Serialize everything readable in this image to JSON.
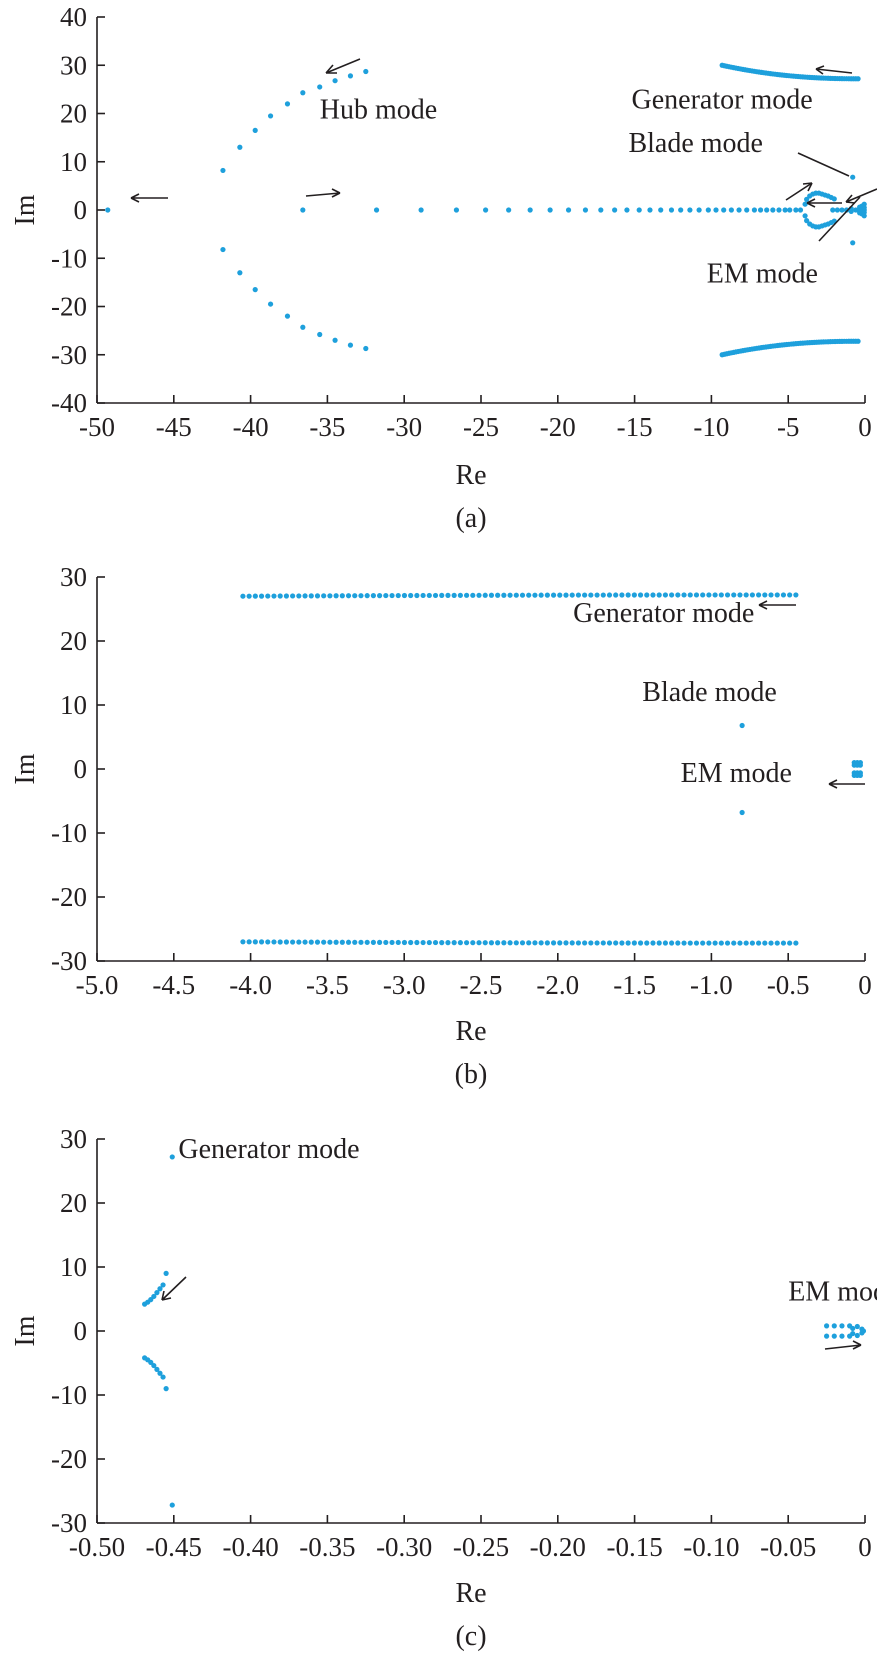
{
  "colors": {
    "marker": "#1ea0dc",
    "ink": "#231f20"
  },
  "chart_data": [
    {
      "type": "scatter",
      "caption": "(a)",
      "xlabel": "Re",
      "ylabel": "Im",
      "xlim": [
        -50,
        0
      ],
      "ylim": [
        -40,
        40
      ],
      "xticks": [
        -50,
        -45,
        -40,
        -35,
        -30,
        -25,
        -20,
        -15,
        -10,
        -5,
        0
      ],
      "xtick_labels": [
        "-50",
        "-45",
        "-40",
        "-35",
        "-30",
        "-25",
        "-20",
        "-15",
        "-10",
        "-5",
        "0"
      ],
      "yticks": [
        40,
        30,
        20,
        10,
        0,
        -10,
        -20,
        -30,
        -40
      ],
      "ytick_labels": [
        "40",
        "30",
        "20",
        "10",
        "0",
        "-10",
        "-20",
        "-30",
        "-40"
      ],
      "grid": false,
      "annotations": [
        {
          "text": "Hub mode",
          "x": -35.5,
          "y": 19
        },
        {
          "text": "Generator mode",
          "x": -15.2,
          "y": 21
        },
        {
          "text": "Blade mode",
          "x": -15.4,
          "y": 12
        },
        {
          "text": "EM mode",
          "x": -10.3,
          "y": -15
        }
      ],
      "series": [
        {
          "label": "hub",
          "points": [
            [
              -49.3,
              0
            ],
            [
              -41.8,
              8.2
            ],
            [
              -40.7,
              13
            ],
            [
              -39.7,
              16.5
            ],
            [
              -38.7,
              19.5
            ],
            [
              -37.6,
              22
            ],
            [
              -36.6,
              24.3
            ],
            [
              -35.5,
              25.5
            ],
            [
              -34.5,
              26.8
            ],
            [
              -33.5,
              27.8
            ],
            [
              -32.5,
              28.7
            ],
            [
              -41.8,
              -8.2
            ],
            [
              -40.7,
              -13
            ],
            [
              -39.7,
              -16.5
            ],
            [
              -38.7,
              -19.5
            ],
            [
              -37.6,
              -22
            ],
            [
              -36.6,
              -24.3
            ],
            [
              -35.5,
              -25.8
            ],
            [
              -34.5,
              -27
            ],
            [
              -33.5,
              -28
            ],
            [
              -32.5,
              -28.7
            ],
            [
              -36.6,
              0
            ],
            [
              -31.8,
              0
            ],
            [
              -28.9,
              0
            ],
            [
              -26.6,
              0
            ],
            [
              -24.7,
              0
            ],
            [
              -23.2,
              0
            ],
            [
              -21.8,
              0
            ],
            [
              -20.5,
              0
            ],
            [
              -19.3,
              0
            ],
            [
              -18.2,
              0
            ],
            [
              -17.2,
              0
            ],
            [
              -16.3,
              0
            ],
            [
              -15.5,
              0
            ],
            [
              -14.7,
              0
            ],
            [
              -14,
              0
            ],
            [
              -13.3,
              0
            ],
            [
              -12.6,
              0
            ],
            [
              -12,
              0
            ],
            [
              -11.4,
              0
            ],
            [
              -10.8,
              0
            ],
            [
              -10.2,
              0
            ],
            [
              -9.7,
              0
            ],
            [
              -9.2,
              0
            ],
            [
              -8.7,
              0
            ],
            [
              -8.2,
              0
            ],
            [
              -7.7,
              0
            ],
            [
              -7.2,
              0
            ],
            [
              -6.8,
              0
            ],
            [
              -6.4,
              0
            ],
            [
              -6,
              0
            ],
            [
              -5.6,
              0
            ],
            [
              -5.2,
              0
            ],
            [
              -4.9,
              0
            ],
            [
              -4.5,
              0
            ],
            [
              -4.2,
              0
            ]
          ]
        },
        {
          "label": "generator",
          "curve": {
            "x_from": -9.3,
            "x_to": -0.45,
            "y_from": 30,
            "y_to": 27.2,
            "n": 60,
            "mirror": true
          }
        },
        {
          "label": "blade",
          "points": [
            [
              -0.8,
              6.8
            ],
            [
              -0.8,
              -6.8
            ]
          ]
        },
        {
          "label": "em",
          "points": [
            [
              -0.05,
              1.2
            ],
            [
              -0.05,
              0.5
            ],
            [
              -0.05,
              0
            ],
            [
              -0.05,
              -0.5
            ],
            [
              -0.05,
              -1.2
            ],
            [
              -0.2,
              0.8
            ],
            [
              -0.2,
              -0.8
            ],
            [
              -0.35,
              0.6
            ],
            [
              -0.35,
              -0.6
            ],
            [
              -0.1,
              0
            ],
            [
              -0.3,
              0
            ],
            [
              -0.6,
              0
            ],
            [
              -0.9,
              0.3
            ],
            [
              -0.9,
              -0.3
            ],
            [
              -1.2,
              0
            ],
            [
              -1.5,
              0
            ],
            [
              -1.8,
              0
            ],
            [
              -2.1,
              0
            ],
            [
              -2.0,
              2.3
            ],
            [
              -2.2,
              2.6
            ],
            [
              -2.4,
              2.9
            ],
            [
              -2.6,
              3.1
            ],
            [
              -2.8,
              3.3
            ],
            [
              -3.0,
              3.5
            ],
            [
              -3.2,
              3.5
            ],
            [
              -3.4,
              3.3
            ],
            [
              -3.6,
              2.9
            ],
            [
              -3.8,
              2.2
            ],
            [
              -3.9,
              1.2
            ],
            [
              -2.0,
              -2.3
            ],
            [
              -2.2,
              -2.6
            ],
            [
              -2.4,
              -2.9
            ],
            [
              -2.6,
              -3.1
            ],
            [
              -2.8,
              -3.3
            ],
            [
              -3.0,
              -3.5
            ],
            [
              -3.2,
              -3.5
            ],
            [
              -3.4,
              -3.3
            ],
            [
              -3.6,
              -2.9
            ],
            [
              -3.8,
              -2.2
            ],
            [
              -3.9,
              -1.2
            ]
          ]
        }
      ]
    },
    {
      "type": "scatter",
      "caption": "(b)",
      "xlabel": "Re",
      "ylabel": "Im",
      "xlim": [
        -5.0,
        0
      ],
      "ylim": [
        -30,
        30
      ],
      "xticks": [
        -5.0,
        -4.5,
        -4.0,
        -3.5,
        -3.0,
        -2.5,
        -2.0,
        -1.5,
        -1.0,
        -0.5,
        0
      ],
      "xtick_labels": [
        "-5.0",
        "-4.5",
        "-4.0",
        "-3.5",
        "-3.0",
        "-2.5",
        "-2.0",
        "-1.5",
        "-1.0",
        "-0.5",
        "0"
      ],
      "yticks": [
        30,
        20,
        10,
        0,
        -10,
        -20,
        -30
      ],
      "ytick_labels": [
        "30",
        "20",
        "10",
        "0",
        "-10",
        "-20",
        "-30"
      ],
      "grid": false,
      "annotations": [
        {
          "text": "Generator mode",
          "x": -1.9,
          "y": 23
        },
        {
          "text": "Blade mode",
          "x": -1.45,
          "y": 10.6
        },
        {
          "text": "EM mode",
          "x": -1.2,
          "y": -2
        }
      ],
      "series": [
        {
          "label": "generator",
          "curve": {
            "x_from": -4.05,
            "x_to": -0.45,
            "y_from": 27,
            "y_to": 27.2,
            "n": 90,
            "mirror": true
          }
        },
        {
          "label": "blade",
          "points": [
            [
              -0.8,
              6.8
            ],
            [
              -0.8,
              -6.8
            ]
          ]
        },
        {
          "label": "em",
          "points": [
            [
              -0.07,
              1.0
            ],
            [
              -0.05,
              1.0
            ],
            [
              -0.03,
              1.0
            ],
            [
              -0.07,
              0.6
            ],
            [
              -0.05,
              0.6
            ],
            [
              -0.03,
              0.6
            ],
            [
              -0.07,
              -0.6
            ],
            [
              -0.05,
              -0.6
            ],
            [
              -0.03,
              -0.6
            ],
            [
              -0.07,
              -1.0
            ],
            [
              -0.05,
              -1.0
            ],
            [
              -0.03,
              -1.0
            ]
          ]
        }
      ]
    },
    {
      "type": "scatter",
      "caption": "(c)",
      "xlabel": "Re",
      "ylabel": "Im",
      "xlim": [
        -0.5,
        0
      ],
      "ylim": [
        -30,
        30
      ],
      "xticks": [
        -0.5,
        -0.45,
        -0.4,
        -0.35,
        -0.3,
        -0.25,
        -0.2,
        -0.15,
        -0.1,
        -0.05,
        0
      ],
      "xtick_labels": [
        "-0.50",
        "-0.45",
        "-0.40",
        "-0.35",
        "-0.30",
        "-0.25",
        "-0.20",
        "-0.15",
        "-0.10",
        "-0.05",
        "0"
      ],
      "yticks": [
        30,
        20,
        10,
        0,
        -10,
        -20,
        -30
      ],
      "ytick_labels": [
        "30",
        "20",
        "10",
        "0",
        "-10",
        "-20",
        "-30"
      ],
      "grid": false,
      "annotations": [
        {
          "text": "Generator mode",
          "x": -0.447,
          "y": 27
        },
        {
          "text": "EM mode",
          "x": -0.05,
          "y": 4.8
        }
      ],
      "series": [
        {
          "label": "generator",
          "points": [
            [
              -0.451,
              27.2
            ],
            [
              -0.451,
              -27.2
            ]
          ]
        },
        {
          "label": "blade",
          "points": [
            [
              -0.455,
              9
            ],
            [
              -0.457,
              7.2
            ],
            [
              -0.459,
              6.6
            ],
            [
              -0.461,
              6.0
            ],
            [
              -0.463,
              5.4
            ],
            [
              -0.465,
              4.9
            ],
            [
              -0.467,
              4.5
            ],
            [
              -0.469,
              4.2
            ],
            [
              -0.455,
              -9
            ],
            [
              -0.457,
              -7.2
            ],
            [
              -0.459,
              -6.6
            ],
            [
              -0.461,
              -6.0
            ],
            [
              -0.463,
              -5.4
            ],
            [
              -0.465,
              -4.9
            ],
            [
              -0.467,
              -4.5
            ],
            [
              -0.469,
              -4.2
            ]
          ]
        },
        {
          "label": "em",
          "points": [
            [
              -0.025,
              0.8
            ],
            [
              -0.02,
              0.8
            ],
            [
              -0.015,
              0.8
            ],
            [
              -0.01,
              0.8
            ],
            [
              -0.005,
              0.7
            ],
            [
              -0.002,
              0.3
            ],
            [
              -0.001,
              0
            ],
            [
              -0.002,
              -0.3
            ],
            [
              -0.005,
              -0.7
            ],
            [
              -0.01,
              -0.8
            ],
            [
              -0.015,
              -0.8
            ],
            [
              -0.02,
              -0.8
            ],
            [
              -0.025,
              -0.8
            ],
            [
              -0.008,
              0.4
            ],
            [
              -0.008,
              -0.4
            ]
          ]
        }
      ]
    }
  ]
}
